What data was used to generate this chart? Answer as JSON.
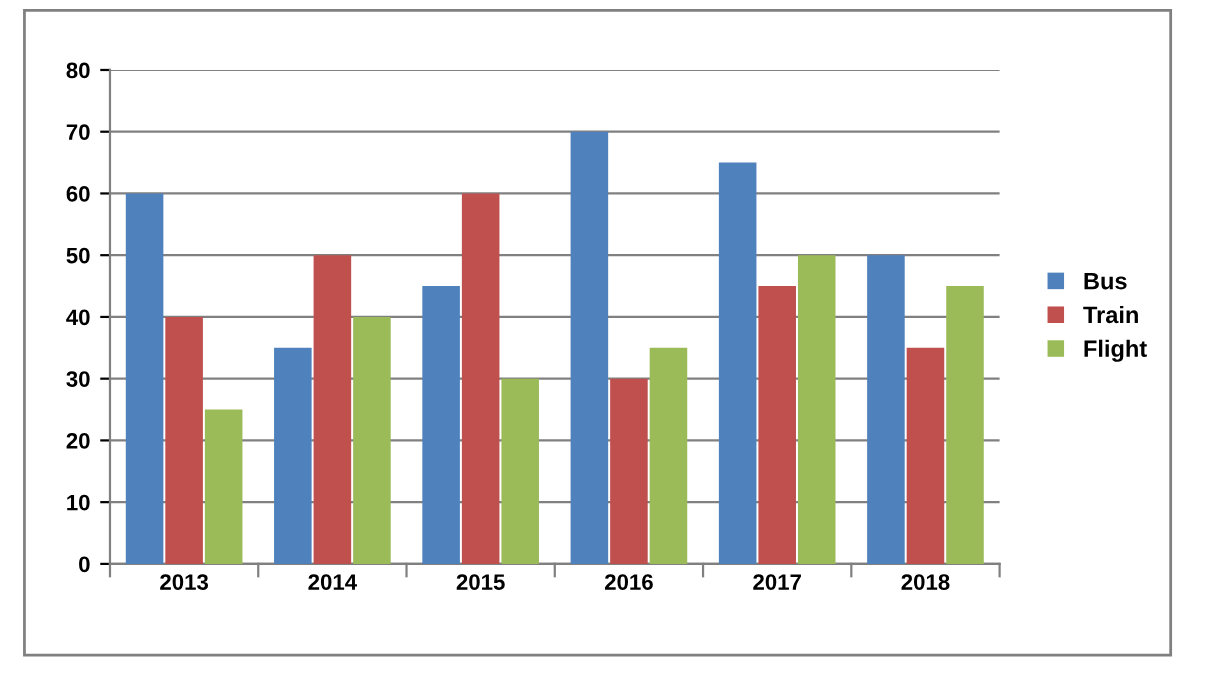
{
  "chart_data": {
    "type": "bar",
    "categories": [
      "2013",
      "2014",
      "2015",
      "2016",
      "2017",
      "2018"
    ],
    "series": [
      {
        "name": "Bus",
        "color": "#4f81bd",
        "values": [
          60,
          35,
          45,
          70,
          65,
          50
        ]
      },
      {
        "name": "Train",
        "color": "#c0504d",
        "values": [
          40,
          50,
          60,
          30,
          45,
          35
        ]
      },
      {
        "name": "Flight",
        "color": "#9bbb59",
        "values": [
          25,
          40,
          30,
          35,
          50,
          45
        ]
      }
    ],
    "ylim": [
      0,
      80
    ],
    "yticks": [
      0,
      10,
      20,
      30,
      40,
      50,
      60,
      70,
      80
    ],
    "grid": "y",
    "legend": "right"
  }
}
